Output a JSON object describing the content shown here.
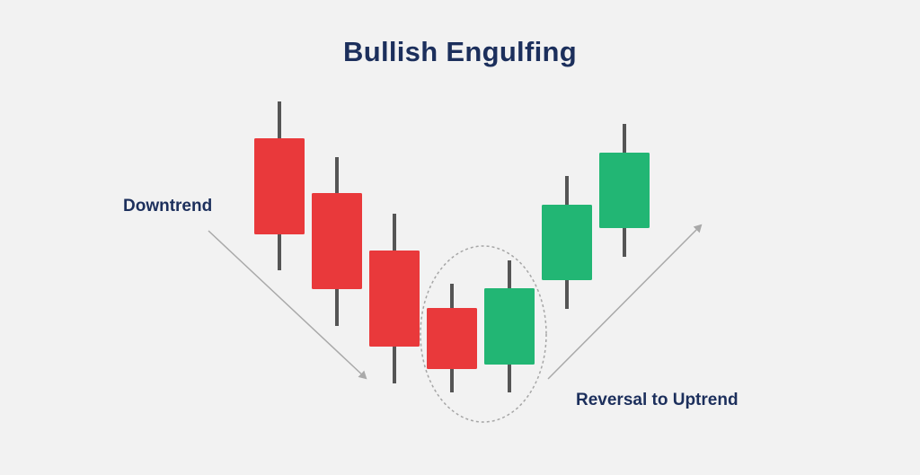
{
  "title": "Bullish Engulfing",
  "labels": {
    "downtrend": "Downtrend",
    "reversal": "Reversal to Uptrend"
  },
  "colors": {
    "background": "#f2f2f2",
    "bearish": "#e9393b",
    "bullish": "#22b674",
    "wick": "#555555",
    "arrow": "#a9a9a9",
    "title_text": "#1c2f5c"
  },
  "candles": [
    {
      "direction": "bearish"
    },
    {
      "direction": "bearish"
    },
    {
      "direction": "bearish"
    },
    {
      "direction": "bearish",
      "pattern": "engulfed"
    },
    {
      "direction": "bullish",
      "pattern": "engulfing"
    },
    {
      "direction": "bullish"
    },
    {
      "direction": "bullish"
    }
  ],
  "icons": {
    "down_arrow": "arrow-down-right-icon",
    "up_arrow": "arrow-up-right-icon",
    "highlight": "dashed-ellipse"
  }
}
